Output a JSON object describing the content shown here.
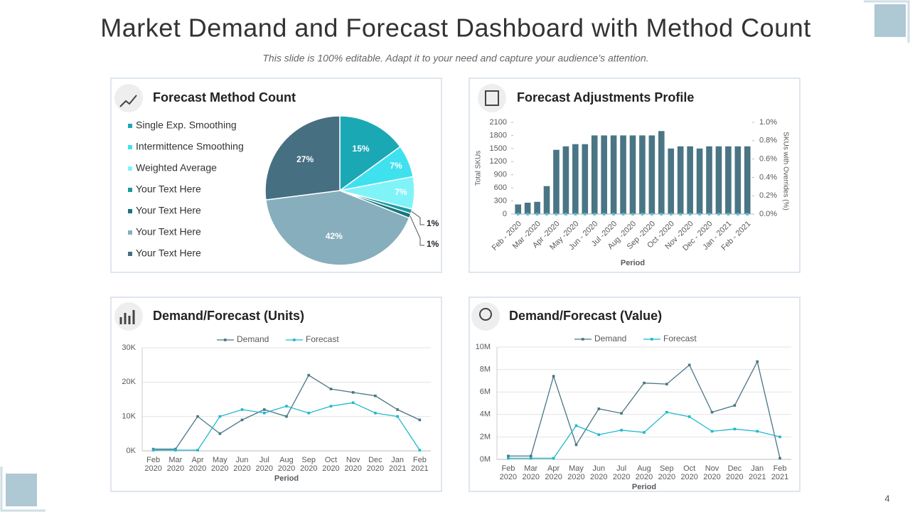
{
  "title": "Market Demand and Forecast Dashboard with Method Count",
  "subtitle": "This slide is 100% editable. Adapt it to your need and capture your audience’s attention.",
  "page_number": "4",
  "chart_data": [
    {
      "type": "pie",
      "title": "Forecast Method Count",
      "categories": [
        "Single Exp. Smoothing",
        "Intermittence Smoothing",
        "Weighted Average",
        "Your Text Here",
        "Your Text Here",
        "Your Text Here",
        "Your Text Here"
      ],
      "values": [
        15,
        7,
        7,
        1,
        1,
        42,
        27
      ],
      "value_labels": [
        "15%",
        "7%",
        "7%",
        "1%",
        "1%",
        "42%",
        "27%"
      ],
      "colors": [
        "#1ba8b5",
        "#3fe1ef",
        "#80f3f9",
        "#1d9aa0",
        "#14777d",
        "#87aebd",
        "#466f82"
      ]
    },
    {
      "type": "bar",
      "title": "Forecast Adjustments Profile",
      "categories": [
        "Feb - 2020",
        null,
        "Mar -2020",
        null,
        "Apr -2020",
        null,
        "May -2020",
        null,
        "Jun - 2020",
        null,
        "Jul -2020",
        null,
        "Aug -2020",
        null,
        "Sep -2020",
        null,
        "Oct -2020",
        null,
        "Nov -2020",
        null,
        "Dec - 2020",
        null,
        "Jan - 2021",
        null,
        "Feb - 2021"
      ],
      "series": [
        {
          "color": "#4a7585",
          "values": [
            220,
            260,
            280,
            640,
            1470,
            1550,
            1600,
            1600,
            1800,
            1800,
            1800,
            1800,
            1800,
            1800,
            1800,
            1900,
            1500,
            1550,
            1550,
            1500,
            1550,
            1550,
            1550,
            1550,
            1550
          ]
        },
        {
          "type": "line",
          "axis": "y2",
          "color": "#1fb8cc",
          "values": [
            0,
            0,
            0,
            0,
            0,
            0,
            0,
            0,
            0,
            0,
            0,
            0,
            0,
            0,
            0,
            0,
            0,
            0,
            0,
            0,
            0,
            0,
            0,
            0,
            0
          ]
        }
      ],
      "x_label": "Period",
      "y_label": "Total SKUs",
      "y2_label": "SKUs with Overrides (%)",
      "ylim": [
        0,
        2100
      ],
      "yticks": [
        0,
        300,
        600,
        900,
        1200,
        1500,
        1800,
        2100
      ],
      "y2lim": [
        0,
        1.0
      ],
      "y2ticks": [
        {
          "value": 0,
          "label": "0.0%"
        },
        {
          "value": 0.2,
          "label": "0.2%"
        },
        {
          "value": 0.4,
          "label": "0.4%"
        },
        {
          "value": 0.6,
          "label": "0.6%"
        },
        {
          "value": 0.8,
          "label": "0.8%"
        },
        {
          "value": 1.0,
          "label": "1.0%"
        }
      ],
      "grid": false
    },
    {
      "type": "line",
      "title": "Demand/Forecast (Units)",
      "categories": [
        "Feb 2020",
        "Mar 2020",
        "Apr 2020",
        "May 2020",
        "Jun 2020",
        "Jul 2020",
        "Aug 2020",
        "Sep 2020",
        "Oct 2020",
        "Nov 2020",
        "Dec 2020",
        "Jan 2021",
        "Feb 2021"
      ],
      "series": [
        {
          "name": "Demand",
          "color": "#4a7585",
          "values": [
            500,
            500,
            10000,
            5000,
            9000,
            12000,
            10000,
            22000,
            18000,
            17000,
            16000,
            12000,
            9000
          ]
        },
        {
          "name": "Forecast",
          "color": "#1fb8cc",
          "values": [
            200,
            200,
            200,
            10000,
            12000,
            11000,
            13000,
            11000,
            13000,
            14000,
            11000,
            10000,
            200
          ]
        }
      ],
      "x_label": "Period",
      "ylim": [
        0,
        30000
      ],
      "yticks": [
        {
          "value": 0,
          "label": "0K"
        },
        {
          "value": 10000,
          "label": "10K"
        },
        {
          "value": 20000,
          "label": "20K"
        },
        {
          "value": 30000,
          "label": "30K"
        }
      ],
      "grid": true,
      "legend": "top"
    },
    {
      "type": "line",
      "title": "Demand/Forecast (Value)",
      "categories": [
        "Feb 2020",
        "Mar 2020",
        "Apr 2020",
        "May 2020",
        "Jun 2020",
        "Jul 2020",
        "Aug 2020",
        "Sep 2020",
        "Oct 2020",
        "Nov 2020",
        "Dec 2020",
        "Jan 2021",
        "Feb 2021"
      ],
      "series": [
        {
          "name": "Demand",
          "color": "#4a7585",
          "values": [
            300000,
            300000,
            7400000,
            1300000,
            4500000,
            4100000,
            6800000,
            6700000,
            8400000,
            4200000,
            4800000,
            8700000,
            100000
          ]
        },
        {
          "name": "Forecast",
          "color": "#1fb8cc",
          "values": [
            100000,
            100000,
            100000,
            3000000,
            2200000,
            2600000,
            2400000,
            4200000,
            3800000,
            2500000,
            2700000,
            2500000,
            2000000
          ]
        }
      ],
      "x_label": "Period",
      "ylim": [
        0,
        10000000
      ],
      "yticks": [
        {
          "value": 0,
          "label": "0M"
        },
        {
          "value": 2000000,
          "label": "2M"
        },
        {
          "value": 4000000,
          "label": "4M"
        },
        {
          "value": 6000000,
          "label": "6M"
        },
        {
          "value": 8000000,
          "label": "8M"
        },
        {
          "value": 10000000,
          "label": "10M"
        }
      ],
      "grid": true,
      "legend": "top"
    }
  ]
}
